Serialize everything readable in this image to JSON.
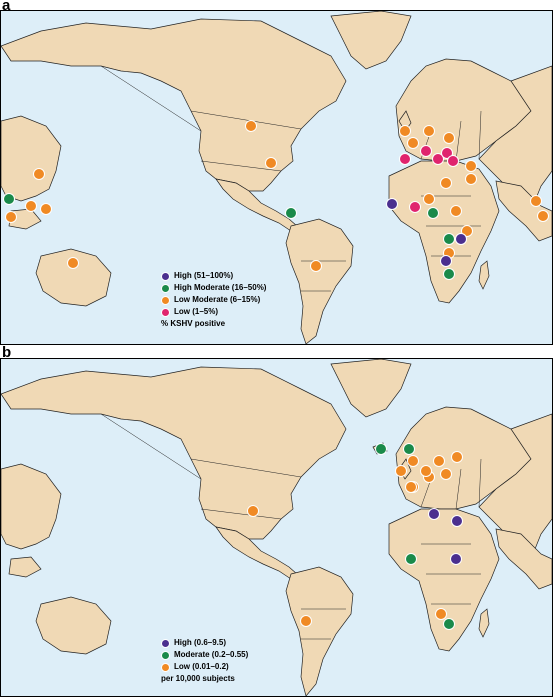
{
  "panel_a": {
    "label": "a",
    "legend": [
      {
        "text": "High (51–100%)",
        "color": "#4b2f8f"
      },
      {
        "text": "High Moderate (16–50%)",
        "color": "#1a8a4a"
      },
      {
        "text": "Low Moderate (6–15%)",
        "color": "#f08a24"
      },
      {
        "text": "Low (1–5%)",
        "color": "#e0246e"
      }
    ],
    "unit_note": "% KSHV positive"
  },
  "panel_b": {
    "label": "b",
    "legend": [
      {
        "text": "High (0.6–9.5)",
        "color": "#4b2f8f"
      },
      {
        "text": "Moderate (0.2–0.55)",
        "color": "#1a8a4a"
      },
      {
        "text": "Low (0.01–0.2)",
        "color": "#f08a24"
      }
    ],
    "unit_note": "per 10,000 subjects"
  },
  "colors": {
    "ocean": "#ddeef8",
    "land": "#f0d9b5",
    "high": "#4b2f8f",
    "high_moderate": "#1a8a4a",
    "low_moderate": "#f08a24",
    "low": "#e0246e"
  }
}
